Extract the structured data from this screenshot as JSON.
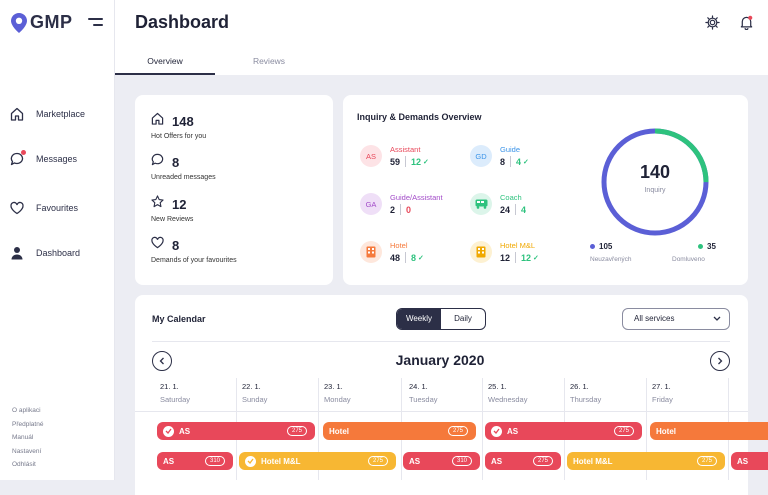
{
  "app": {
    "logo": "GMP"
  },
  "sidebar": {
    "items": [
      {
        "label": "Marketplace",
        "icon": "home-icon"
      },
      {
        "label": "Messages",
        "icon": "chat-icon"
      },
      {
        "label": "Favourites",
        "icon": "heart-icon"
      },
      {
        "label": "Dashboard",
        "icon": "user-icon"
      }
    ],
    "footer": [
      "O aplikaci",
      "Předplatné",
      "Manuál",
      "Nastavení",
      "Odhlásit"
    ]
  },
  "header": {
    "title": "Dashboard",
    "tabs": [
      "Overview",
      "Reviews"
    ],
    "active_tab": "Overview"
  },
  "stats": [
    {
      "value": "148",
      "label": "Hot Offers for you",
      "icon": "home-icon"
    },
    {
      "value": "8",
      "label": "Unreaded messages",
      "icon": "chat-icon"
    },
    {
      "value": "12",
      "label": "New Reviews",
      "icon": "star-icon"
    },
    {
      "value": "8",
      "label": "Demands of your favourites",
      "icon": "heart-icon"
    }
  ],
  "inquiry": {
    "title": "Inquiry & Demands Overview",
    "items": [
      {
        "badge": "AS",
        "name": "Assistant",
        "a": "59",
        "b": "12",
        "b_check": true,
        "color": "#e8485a",
        "bg": "#fde3e6",
        "b_color": "green"
      },
      {
        "badge": "GD",
        "name": "Guide",
        "a": "8",
        "b": "4",
        "b_check": true,
        "color": "#3a93e8",
        "bg": "#dcecfc",
        "b_color": "green"
      },
      {
        "badge": "GA",
        "name": "Guide/Assistant",
        "a": "2",
        "b": "0",
        "b_check": false,
        "color": "#a24bc8",
        "bg": "#efdff7",
        "b_color": "red"
      },
      {
        "badge": "bus",
        "name": "Coach",
        "a": "24",
        "b": "4",
        "b_check": false,
        "color": "#2ec27e",
        "bg": "#dcf5ea",
        "b_color": "green"
      },
      {
        "badge": "hotel",
        "name": "Hotel",
        "a": "48",
        "b": "8",
        "b_check": true,
        "color": "#f5793b",
        "bg": "#fee7dc",
        "b_color": "green"
      },
      {
        "badge": "hotel",
        "name": "Hotel M&L",
        "a": "12",
        "b": "12",
        "b_check": true,
        "color": "#f0a800",
        "bg": "#fdf1d2",
        "b_color": "green"
      }
    ],
    "total": "140",
    "total_label": "Inquiry",
    "legend": [
      {
        "value": "105",
        "label": "Neuzavřených",
        "color": "#5b5fd6"
      },
      {
        "value": "35",
        "label": "Domluveno",
        "color": "#2ec27e"
      }
    ],
    "fraction_done": 0.25
  },
  "calendar": {
    "title": "My Calendar",
    "view_options": [
      "Weekly",
      "Daily"
    ],
    "active_view": "Weekly",
    "service_filter": "All services",
    "month": "January 2020",
    "days": [
      {
        "date": "21. 1.",
        "name": "Saturday"
      },
      {
        "date": "22. 1.",
        "name": "Sunday"
      },
      {
        "date": "23. 1.",
        "name": "Monday"
      },
      {
        "date": "24. 1.",
        "name": "Tuesday"
      },
      {
        "date": "25. 1.",
        "name": "Wednesday"
      },
      {
        "date": "26. 1.",
        "name": "Thursday"
      },
      {
        "date": "27. 1.",
        "name": "Friday"
      }
    ],
    "events": [
      {
        "label": "AS",
        "count": "275",
        "check": true,
        "color": "red"
      },
      {
        "label": "Hotel",
        "count": "275",
        "check": false,
        "color": "orange"
      },
      {
        "label": "AS",
        "count": "275",
        "check": true,
        "color": "red"
      },
      {
        "label": "Hotel",
        "count": "",
        "check": false,
        "color": "orange"
      },
      {
        "label": "AS",
        "count": "310",
        "check": false,
        "color": "red"
      },
      {
        "label": "Hotel M&L",
        "count": "275",
        "check": true,
        "color": "yellow"
      },
      {
        "label": "AS",
        "count": "310",
        "check": false,
        "color": "red"
      },
      {
        "label": "AS",
        "count": "275",
        "check": false,
        "color": "red"
      },
      {
        "label": "Hotel M&L",
        "count": "275",
        "check": false,
        "color": "yellow"
      },
      {
        "label": "AS",
        "count": "",
        "check": false,
        "color": "red"
      }
    ]
  }
}
